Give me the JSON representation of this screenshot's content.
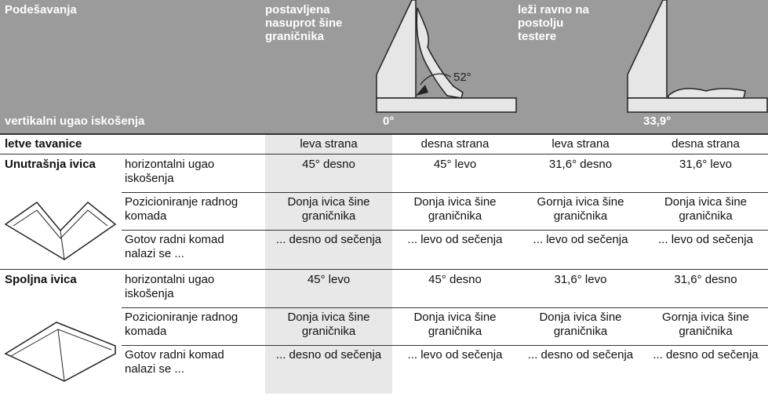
{
  "header": {
    "title": "Podešavanja",
    "subtitle": "vertikalni ugao iskošenja",
    "annotation": "52°",
    "positions": [
      {
        "label": "postavljena\nnasuprot šine\ngraničnika",
        "angle": "0°"
      },
      {
        "label": "leži ravno na\npostolju\ntestere",
        "angle": "33,9°"
      }
    ]
  },
  "table": {
    "title": "letve tavanice",
    "columns": [
      "leva strana",
      "desna strana",
      "leva strana",
      "desna strana"
    ],
    "sections": [
      {
        "name": "Unutrašnja ivica",
        "rows": [
          {
            "label": "horizontalni ugao\niskošenja",
            "cells": [
              "45° desno",
              "45° levo",
              "31,6° desno",
              "31,6° levo"
            ]
          },
          {
            "label": "Pozicioniranje radnog\nkomada",
            "cells": [
              "Donja ivica šine\ngraničnika",
              "Donja ivica šine\ngraničnika",
              "Gornja ivica šine\ngraničnika",
              "Donja ivica šine\ngraničnika"
            ]
          },
          {
            "label": "Gotov radni komad\nnalazi se ...",
            "cells": [
              "... desno od sečenja",
              "... levo od sečenja",
              "... levo od sečenja",
              "... levo od sečenja"
            ]
          }
        ]
      },
      {
        "name": "Spoljna ivica",
        "rows": [
          {
            "label": "horizontalni ugao\niskošenja",
            "cells": [
              "45° levo",
              "45° desno",
              "31,6° levo",
              "31,6° desno"
            ]
          },
          {
            "label": "Pozicioniranje radnog\nkomada",
            "cells": [
              "Donja ivica šine\ngraničnika",
              "Donja ivica šine\ngraničnika",
              "Donja ivica šine\ngraničnika",
              "Gornja ivica šine\ngraničnika"
            ]
          },
          {
            "label": "Gotov radni komad\nnalazi se ...",
            "cells": [
              "... desno od sečenja",
              "... levo od sečenja",
              "... desno od sečenja",
              "... desno od sečenja"
            ]
          }
        ]
      }
    ]
  }
}
